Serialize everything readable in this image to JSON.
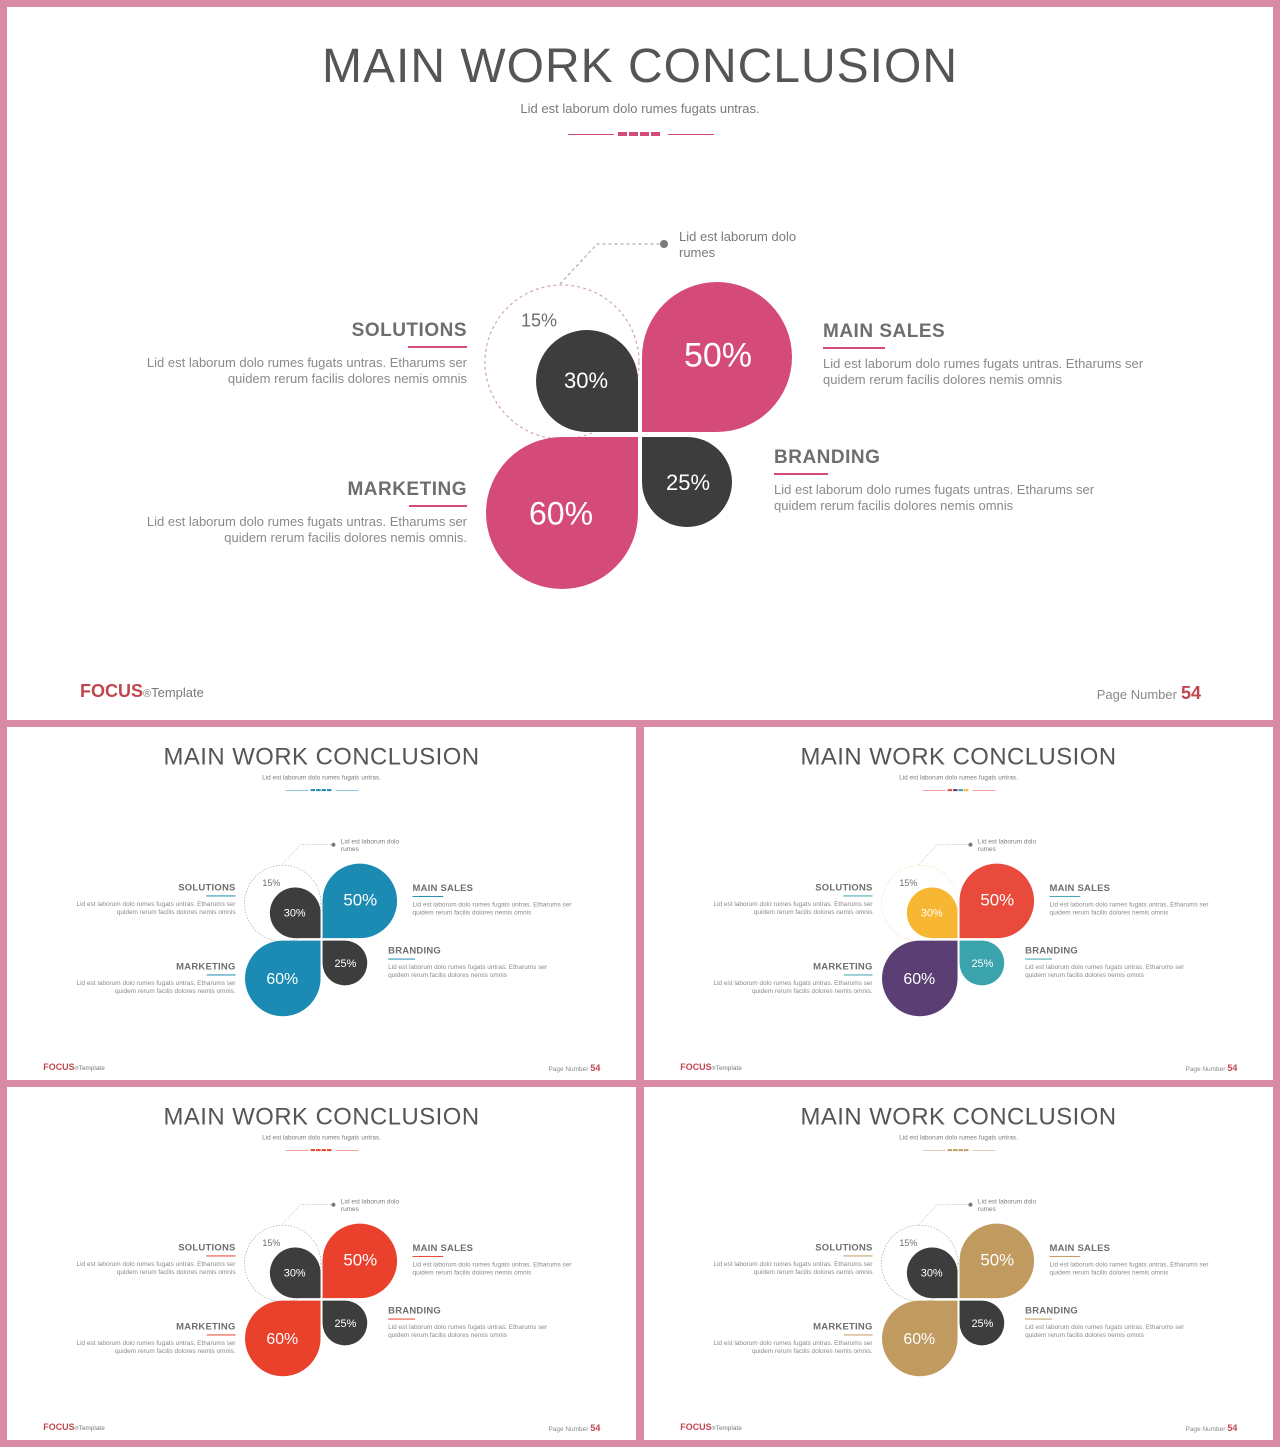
{
  "slides": [
    {
      "variant": "pink",
      "title": "MAIN WORK CONCLUSION",
      "subtitle": "Lid est laborum dolo rumes fugats untras.",
      "callout": "Lid est laborum dolo rumes",
      "petals": {
        "top_left": "30%",
        "top_left_outer": "15%",
        "top_right": "50%",
        "bottom_left": "60%",
        "bottom_right": "25%"
      },
      "blocks": {
        "solutions": {
          "heading": "SOLUTIONS",
          "text": "Lid est laborum dolo rumes fugats untras. Etharums ser quidem rerum facilis dolores nemis omnis"
        },
        "marketing": {
          "heading": "MARKETING",
          "text": "Lid est laborum dolo rumes fugats untras. Etharums ser quidem rerum facilis dolores nemis omnis."
        },
        "main_sales": {
          "heading": "MAIN SALES",
          "text": "Lid est laborum dolo rumes fugats untras. Etharums ser quidem rerum facilis dolores nemis omnis"
        },
        "branding": {
          "heading": "BRANDING",
          "text": "Lid est laborum dolo rumes fugats untras. Etharums ser quidem rerum facilis dolores nemis omnis"
        }
      },
      "footer": {
        "brand": "FOCUS",
        "reg": "®",
        "template": "Template",
        "page_label": "Page Number",
        "page_number": "54"
      },
      "colors": {
        "top_left": "#3d3d3d",
        "top_right": "#d44a78",
        "bottom_left": "#d44a78",
        "bottom_right": "#3d3d3d",
        "divider": [
          "#d44a78",
          "#d44a78",
          "#d44a78",
          "#d44a78"
        ],
        "heading_underline": "#d44a78",
        "brand": "#c0474f",
        "page_number": "#c0474f",
        "outline": "#d6a3b3"
      }
    },
    {
      "variant": "blue",
      "title": "MAIN WORK CONCLUSION",
      "subtitle": "Lid est laborum dolo rumes fugats untras.",
      "callout": "Lid est laborum dolo rumes",
      "petals": {
        "top_left": "30%",
        "top_left_outer": "15%",
        "top_right": "50%",
        "bottom_left": "60%",
        "bottom_right": "25%"
      },
      "blocks": {
        "solutions": {
          "heading": "SOLUTIONS",
          "text": "Lid est laborum dolo rumes fugats untras. Etharums ser quidem rerum facilis dolores nemis omnis"
        },
        "marketing": {
          "heading": "MARKETING",
          "text": "Lid est laborum dolo rumes fugats untras. Etharums ser quidem rerum facilis dolores nemis omnis."
        },
        "main_sales": {
          "heading": "MAIN SALES",
          "text": "Lid est laborum dolo rumes fugats untras. Etharums ser quidem rerum facilis dolores nemis omnis"
        },
        "branding": {
          "heading": "BRANDING",
          "text": "Lid est laborum dolo rumes fugats untras. Etharums ser quidem rerum facilis dolores nemis omnis"
        }
      },
      "footer": {
        "brand": "FOCUS",
        "reg": "®",
        "template": "Template",
        "page_label": "Page Number",
        "page_number": "54"
      },
      "colors": {
        "top_left": "#3d3d3d",
        "top_right": "#1b8bb4",
        "bottom_left": "#1b8bb4",
        "bottom_right": "#3d3d3d",
        "divider": [
          "#1b8bb4",
          "#1b8bb4",
          "#1b8bb4",
          "#1b8bb4"
        ],
        "heading_underline": "#1b8bb4",
        "brand": "#c0474f",
        "page_number": "#c0474f",
        "outline": "#9a9a9a"
      }
    },
    {
      "variant": "multi",
      "title": "MAIN WORK CONCLUSION",
      "subtitle": "Lid est laborum dolo rumes fugats untras.",
      "callout": "Lid est laborum dolo rumes",
      "petals": {
        "top_left": "30%",
        "top_left_outer": "15%",
        "top_right": "50%",
        "bottom_left": "60%",
        "bottom_right": "25%"
      },
      "blocks": {
        "solutions": {
          "heading": "SOLUTIONS",
          "text": "Lid est laborum dolo rumes fugats untras. Etharums ser quidem rerum facilis dolores nemis omnis"
        },
        "marketing": {
          "heading": "MARKETING",
          "text": "Lid est laborum dolo rumes fugats untras. Etharums ser quidem rerum facilis dolores nemis omnis."
        },
        "main_sales": {
          "heading": "MAIN SALES",
          "text": "Lid est laborum dolo rumes fugats untras. Etharums ser quidem rerum facilis dolores nemis omnis"
        },
        "branding": {
          "heading": "BRANDING",
          "text": "Lid est laborum dolo rumes fugats untras. Etharums ser quidem rerum facilis dolores nemis omnis"
        }
      },
      "footer": {
        "brand": "FOCUS",
        "reg": "®",
        "template": "Template",
        "page_label": "Page Number",
        "page_number": "54"
      },
      "colors": {
        "top_left": "#f7b733",
        "top_right": "#e84a3c",
        "bottom_left": "#5b3f74",
        "bottom_right": "#3ba3ac",
        "divider": [
          "#e84a3c",
          "#5b3f74",
          "#3ba3ac",
          "#f7b733"
        ],
        "heading_underline": "#3ba3ac",
        "brand": "#c0474f",
        "page_number": "#c0474f",
        "outline": "#f0d8a0"
      }
    },
    {
      "variant": "red",
      "title": "MAIN WORK CONCLUSION",
      "subtitle": "Lid est laborum dolo rumes fugats untras.",
      "callout": "Lid est laborum dolo rumes",
      "petals": {
        "top_left": "30%",
        "top_left_outer": "15%",
        "top_right": "50%",
        "bottom_left": "60%",
        "bottom_right": "25%"
      },
      "blocks": {
        "solutions": {
          "heading": "SOLUTIONS",
          "text": "Lid est laborum dolo rumes fugats untras. Etharums ser quidem rerum facilis dolores nemis omnis"
        },
        "marketing": {
          "heading": "MARKETING",
          "text": "Lid est laborum dolo rumes fugats untras. Etharums ser quidem rerum facilis dolores nemis omnis."
        },
        "main_sales": {
          "heading": "MAIN SALES",
          "text": "Lid est laborum dolo rumes fugats untras. Etharums ser quidem rerum facilis dolores nemis omnis"
        },
        "branding": {
          "heading": "BRANDING",
          "text": "Lid est laborum dolo rumes fugats untras. Etharums ser quidem rerum facilis dolores nemis omnis"
        }
      },
      "footer": {
        "brand": "FOCUS",
        "reg": "®",
        "template": "Template",
        "page_label": "Page Number",
        "page_number": "54"
      },
      "colors": {
        "top_left": "#3d3d3d",
        "top_right": "#e9412b",
        "bottom_left": "#e9412b",
        "bottom_right": "#3d3d3d",
        "divider": [
          "#e9412b",
          "#e9412b",
          "#e9412b",
          "#e9412b"
        ],
        "heading_underline": "#e9412b",
        "brand": "#c0474f",
        "page_number": "#c0474f",
        "outline": "#9a9a9a"
      }
    },
    {
      "variant": "gold",
      "title": "MAIN WORK CONCLUSION",
      "subtitle": "Lid est laborum dolo rumes fugats untras.",
      "callout": "Lid est laborum dolo rumes",
      "petals": {
        "top_left": "30%",
        "top_left_outer": "15%",
        "top_right": "50%",
        "bottom_left": "60%",
        "bottom_right": "25%"
      },
      "blocks": {
        "solutions": {
          "heading": "SOLUTIONS",
          "text": "Lid est laborum dolo rumes fugats untras. Etharums ser quidem rerum facilis dolores nemis omnis"
        },
        "marketing": {
          "heading": "MARKETING",
          "text": "Lid est laborum dolo rumes fugats untras. Etharums ser quidem rerum facilis dolores nemis omnis."
        },
        "main_sales": {
          "heading": "MAIN SALES",
          "text": "Lid est laborum dolo rumes fugats untras. Etharums ser quidem rerum facilis dolores nemis omnis"
        },
        "branding": {
          "heading": "BRANDING",
          "text": "Lid est laborum dolo rumes fugats untras. Etharums ser quidem rerum facilis dolores nemis omnis"
        }
      },
      "footer": {
        "brand": "FOCUS",
        "reg": "®",
        "template": "Template",
        "page_label": "Page Number",
        "page_number": "54"
      },
      "colors": {
        "top_left": "#3d3d3d",
        "top_right": "#c09a5f",
        "bottom_left": "#c09a5f",
        "bottom_right": "#3d3d3d",
        "divider": [
          "#c09a5f",
          "#c09a5f",
          "#c09a5f",
          "#c09a5f"
        ],
        "heading_underline": "#c09a5f",
        "brand": "#c0474f",
        "page_number": "#c0474f",
        "outline": "#9a9a9a"
      }
    }
  ]
}
